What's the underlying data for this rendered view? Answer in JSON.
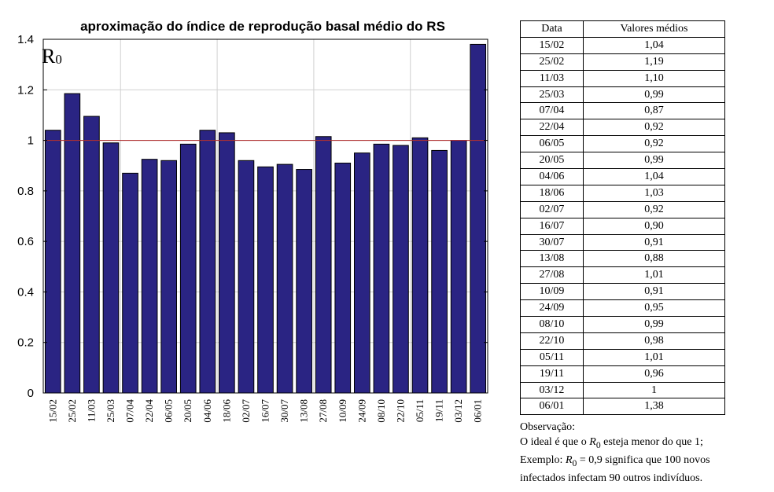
{
  "chart_data": {
    "type": "bar",
    "title": "aproximação do índice de reprodução basal médio do RS",
    "label": "R",
    "label_sub": "0",
    "categories": [
      "15/02",
      "25/02",
      "11/03",
      "25/03",
      "07/04",
      "22/04",
      "06/05",
      "20/05",
      "04/06",
      "18/06",
      "02/07",
      "16/07",
      "30/07",
      "13/08",
      "27/08",
      "10/09",
      "24/09",
      "08/10",
      "22/10",
      "05/11",
      "19/11",
      "03/12",
      "06/01"
    ],
    "values": [
      1.04,
      1.185,
      1.095,
      0.99,
      0.87,
      0.925,
      0.92,
      0.985,
      1.04,
      1.03,
      0.92,
      0.895,
      0.905,
      0.885,
      1.015,
      0.91,
      0.95,
      0.985,
      0.98,
      1.01,
      0.96,
      1.0,
      1.38
    ],
    "ylim": [
      0,
      1.4
    ],
    "yticks": [
      "0",
      "0.2",
      "0.4",
      "0.6",
      "0.8",
      "1",
      "1.2",
      "1.4"
    ],
    "reference_line": 1,
    "grid": true,
    "colors": {
      "bar": "#2a2483",
      "reference": "#b03030",
      "grid": "#d0d0d0"
    }
  },
  "table": {
    "headers": [
      "Data",
      "Valores médios"
    ],
    "rows": [
      [
        "15/02",
        "1,04"
      ],
      [
        "25/02",
        "1,19"
      ],
      [
        "11/03",
        "1,10"
      ],
      [
        "25/03",
        "0,99"
      ],
      [
        "07/04",
        "0,87"
      ],
      [
        "22/04",
        "0,92"
      ],
      [
        "06/05",
        "0,92"
      ],
      [
        "20/05",
        "0,99"
      ],
      [
        "04/06",
        "1,04"
      ],
      [
        "18/06",
        "1,03"
      ],
      [
        "02/07",
        "0,92"
      ],
      [
        "16/07",
        "0,90"
      ],
      [
        "30/07",
        "0,91"
      ],
      [
        "13/08",
        "0,88"
      ],
      [
        "27/08",
        "1,01"
      ],
      [
        "10/09",
        "0,91"
      ],
      [
        "24/09",
        "0,95"
      ],
      [
        "08/10",
        "0,99"
      ],
      [
        "22/10",
        "0,98"
      ],
      [
        "05/11",
        "1,01"
      ],
      [
        "19/11",
        "0,96"
      ],
      [
        "03/12",
        "1"
      ],
      [
        "06/01",
        "1,38"
      ]
    ]
  },
  "notes": {
    "heading": "Observação:",
    "line1_pre": "O ideal é que o ",
    "line1_var": "R",
    "line1_sub": "0",
    "line1_post": " esteja menor do que 1;",
    "line2_pre": "Exemplo: ",
    "line2_var": "R",
    "line2_sub": "0",
    "line2_post": " = 0,9 significa que 100 novos",
    "line3": "infectados infectam 90 outros indivíduos."
  }
}
